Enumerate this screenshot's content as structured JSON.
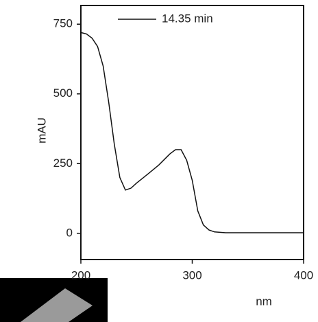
{
  "chart_data": {
    "type": "line",
    "x_label": "nm",
    "y_label": "mAU",
    "x": [
      200,
      205,
      210,
      215,
      220,
      225,
      230,
      235,
      240,
      245,
      250,
      260,
      270,
      280,
      285,
      290,
      295,
      300,
      305,
      310,
      315,
      320,
      330,
      350,
      400
    ],
    "series": [
      {
        "name": "14.35 min",
        "color": "#111111",
        "values": [
          720,
          715,
          700,
          670,
          600,
          470,
          320,
          200,
          155,
          162,
          180,
          212,
          245,
          285,
          300,
          300,
          262,
          190,
          80,
          30,
          12,
          5,
          2,
          2,
          2
        ]
      }
    ],
    "xlim": [
      200,
      400
    ],
    "xticks": [
      200,
      300,
      400
    ],
    "ylim": [
      -94,
      817
    ],
    "yticks": [
      0,
      250,
      500,
      750
    ]
  }
}
